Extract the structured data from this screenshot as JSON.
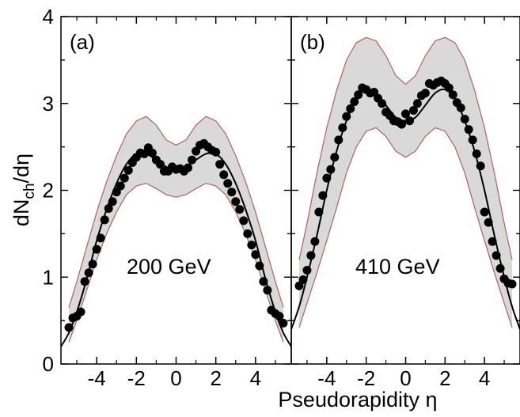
{
  "chart_data": {
    "type": "scatter",
    "xlabel": "Pseudorapidity η",
    "ylabel": {
      "main": "dN",
      "sub": "ch",
      "tail": "/dη"
    },
    "ylim": [
      0,
      4
    ],
    "xlim": [
      -5.8,
      5.8
    ],
    "y_ticks": [
      "0",
      "1",
      "2",
      "3",
      "4"
    ],
    "x_ticks": [
      "-4",
      "-2",
      "0",
      "2",
      "4"
    ],
    "x_tick_values": [
      -4,
      -2,
      0,
      2,
      4
    ],
    "y_tick_values": [
      0,
      1,
      2,
      3,
      4
    ],
    "colors": {
      "band_fill": "#d9d9d9",
      "band_edge": "#b06060",
      "points": "#000000",
      "curve": "#000000"
    },
    "panels": [
      {
        "id": "a",
        "label": "(a)",
        "energy": "200 GeV",
        "band": {
          "x": [
            -5.4,
            -5.0,
            -4.5,
            -4.0,
            -3.5,
            -3.0,
            -2.5,
            -2.0,
            -1.5,
            -1.0,
            -0.5,
            0.0,
            0.5,
            1.0,
            1.5,
            2.0,
            2.5,
            3.0,
            3.5,
            4.0,
            4.5,
            5.0,
            5.4
          ],
          "upper": [
            0.65,
            0.95,
            1.35,
            1.75,
            2.1,
            2.4,
            2.65,
            2.8,
            2.85,
            2.75,
            2.58,
            2.52,
            2.58,
            2.75,
            2.85,
            2.8,
            2.65,
            2.4,
            2.1,
            1.75,
            1.35,
            0.95,
            0.65
          ],
          "lower": [
            0.25,
            0.5,
            0.85,
            1.2,
            1.5,
            1.75,
            1.95,
            2.05,
            2.08,
            2.02,
            1.95,
            1.92,
            1.95,
            2.02,
            2.08,
            2.05,
            1.95,
            1.75,
            1.5,
            1.2,
            0.85,
            0.5,
            0.25
          ]
        },
        "curve": {
          "x": [
            -5.8,
            -5.4,
            -5.0,
            -4.5,
            -4.0,
            -3.5,
            -3.0,
            -2.5,
            -2.0,
            -1.5,
            -1.0,
            -0.5,
            0.0,
            0.5,
            1.0,
            1.5,
            2.0,
            2.5,
            3.0,
            3.5,
            4.0,
            4.5,
            5.0,
            5.4,
            5.8
          ],
          "y": [
            0.2,
            0.36,
            0.6,
            0.98,
            1.42,
            1.78,
            2.08,
            2.3,
            2.42,
            2.42,
            2.35,
            2.27,
            2.23,
            2.27,
            2.35,
            2.42,
            2.42,
            2.3,
            2.08,
            1.78,
            1.42,
            0.98,
            0.6,
            0.36,
            0.2
          ]
        },
        "points": {
          "x": [
            -5.4,
            -5.2,
            -5.0,
            -4.8,
            -4.6,
            -4.4,
            -4.2,
            -4.0,
            -3.8,
            -3.6,
            -3.4,
            -3.2,
            -3.0,
            -2.8,
            -2.6,
            -2.4,
            -2.2,
            -2.0,
            -1.8,
            -1.6,
            -1.4,
            -1.2,
            -1.0,
            -0.8,
            -0.6,
            -0.4,
            -0.2,
            0.0,
            0.2,
            0.4,
            0.6,
            0.8,
            1.0,
            1.2,
            1.4,
            1.6,
            1.8,
            2.0,
            2.2,
            2.4,
            2.6,
            2.8,
            3.0,
            3.2,
            3.4,
            3.6,
            3.8,
            4.0,
            4.2,
            4.4,
            4.6,
            4.8,
            5.0,
            5.2,
            5.4
          ],
          "y": [
            0.42,
            0.53,
            0.55,
            0.6,
            0.95,
            1.05,
            1.15,
            1.32,
            1.45,
            1.66,
            1.79,
            1.87,
            1.98,
            2.05,
            2.14,
            2.23,
            2.32,
            2.38,
            2.43,
            2.42,
            2.49,
            2.43,
            2.35,
            2.3,
            2.22,
            2.22,
            2.27,
            2.24,
            2.25,
            2.22,
            2.26,
            2.35,
            2.45,
            2.52,
            2.54,
            2.5,
            2.46,
            2.44,
            2.3,
            2.18,
            2.08,
            1.98,
            1.87,
            1.78,
            1.65,
            1.5,
            1.37,
            1.26,
            1.13,
            0.95,
            0.85,
            0.62,
            0.58,
            0.55,
            0.47
          ]
        }
      },
      {
        "id": "b",
        "label": "(b)",
        "energy": "410 GeV",
        "band": {
          "x": [
            -5.4,
            -5.0,
            -4.5,
            -4.0,
            -3.5,
            -3.0,
            -2.5,
            -2.0,
            -1.5,
            -1.0,
            -0.5,
            0.0,
            0.5,
            1.0,
            1.5,
            2.0,
            2.5,
            3.0,
            3.5,
            4.0,
            4.5,
            5.0,
            5.4
          ],
          "upper": [
            1.2,
            1.62,
            2.2,
            2.72,
            3.15,
            3.5,
            3.7,
            3.76,
            3.72,
            3.55,
            3.32,
            3.22,
            3.32,
            3.55,
            3.72,
            3.76,
            3.7,
            3.5,
            3.15,
            2.72,
            2.2,
            1.62,
            1.2
          ],
          "lower": [
            0.42,
            0.7,
            1.05,
            1.42,
            1.8,
            2.2,
            2.5,
            2.68,
            2.72,
            2.62,
            2.45,
            2.38,
            2.45,
            2.62,
            2.72,
            2.68,
            2.5,
            2.2,
            1.8,
            1.42,
            1.05,
            0.7,
            0.42
          ]
        },
        "curve": {
          "x": [
            -5.8,
            -5.4,
            -5.0,
            -4.5,
            -4.0,
            -3.5,
            -3.0,
            -2.5,
            -2.0,
            -1.5,
            -1.0,
            -0.5,
            0.0,
            0.5,
            1.0,
            1.5,
            2.0,
            2.5,
            3.0,
            3.5,
            4.0,
            4.5,
            5.0,
            5.4,
            5.8
          ],
          "y": [
            0.4,
            0.66,
            1.0,
            1.48,
            2.0,
            2.45,
            2.8,
            3.05,
            3.16,
            3.12,
            2.98,
            2.84,
            2.8,
            2.84,
            2.98,
            3.12,
            3.16,
            3.05,
            2.8,
            2.45,
            2.0,
            1.48,
            1.0,
            0.66,
            0.4
          ]
        },
        "points": {
          "x": [
            -5.4,
            -5.2,
            -5.0,
            -4.8,
            -4.6,
            -4.4,
            -4.2,
            -4.0,
            -3.8,
            -3.6,
            -3.4,
            -3.2,
            -3.0,
            -2.8,
            -2.6,
            -2.4,
            -2.2,
            -2.0,
            -1.8,
            -1.6,
            -1.4,
            -1.2,
            -1.0,
            -0.8,
            -0.6,
            -0.4,
            -0.2,
            0.0,
            0.2,
            0.4,
            0.6,
            0.8,
            1.0,
            1.2,
            1.4,
            1.6,
            1.8,
            2.0,
            2.2,
            2.4,
            2.6,
            2.8,
            3.0,
            3.2,
            3.4,
            3.6,
            3.8,
            4.0,
            4.2,
            4.4,
            4.6,
            4.8,
            5.0,
            5.2,
            5.4
          ],
          "y": [
            0.9,
            0.97,
            1.08,
            1.25,
            1.41,
            1.75,
            1.94,
            2.14,
            2.24,
            2.38,
            2.58,
            2.72,
            2.85,
            2.94,
            3.02,
            3.1,
            3.18,
            3.16,
            3.12,
            3.13,
            3.06,
            3.0,
            2.9,
            2.86,
            2.8,
            2.79,
            2.76,
            2.88,
            2.8,
            2.92,
            3.0,
            3.09,
            3.12,
            3.23,
            3.21,
            3.24,
            3.26,
            3.23,
            3.18,
            3.1,
            3.01,
            2.95,
            2.82,
            2.7,
            2.58,
            2.42,
            2.28,
            1.75,
            1.63,
            1.41,
            1.25,
            1.1,
            0.98,
            0.93,
            0.92
          ]
        }
      }
    ]
  }
}
